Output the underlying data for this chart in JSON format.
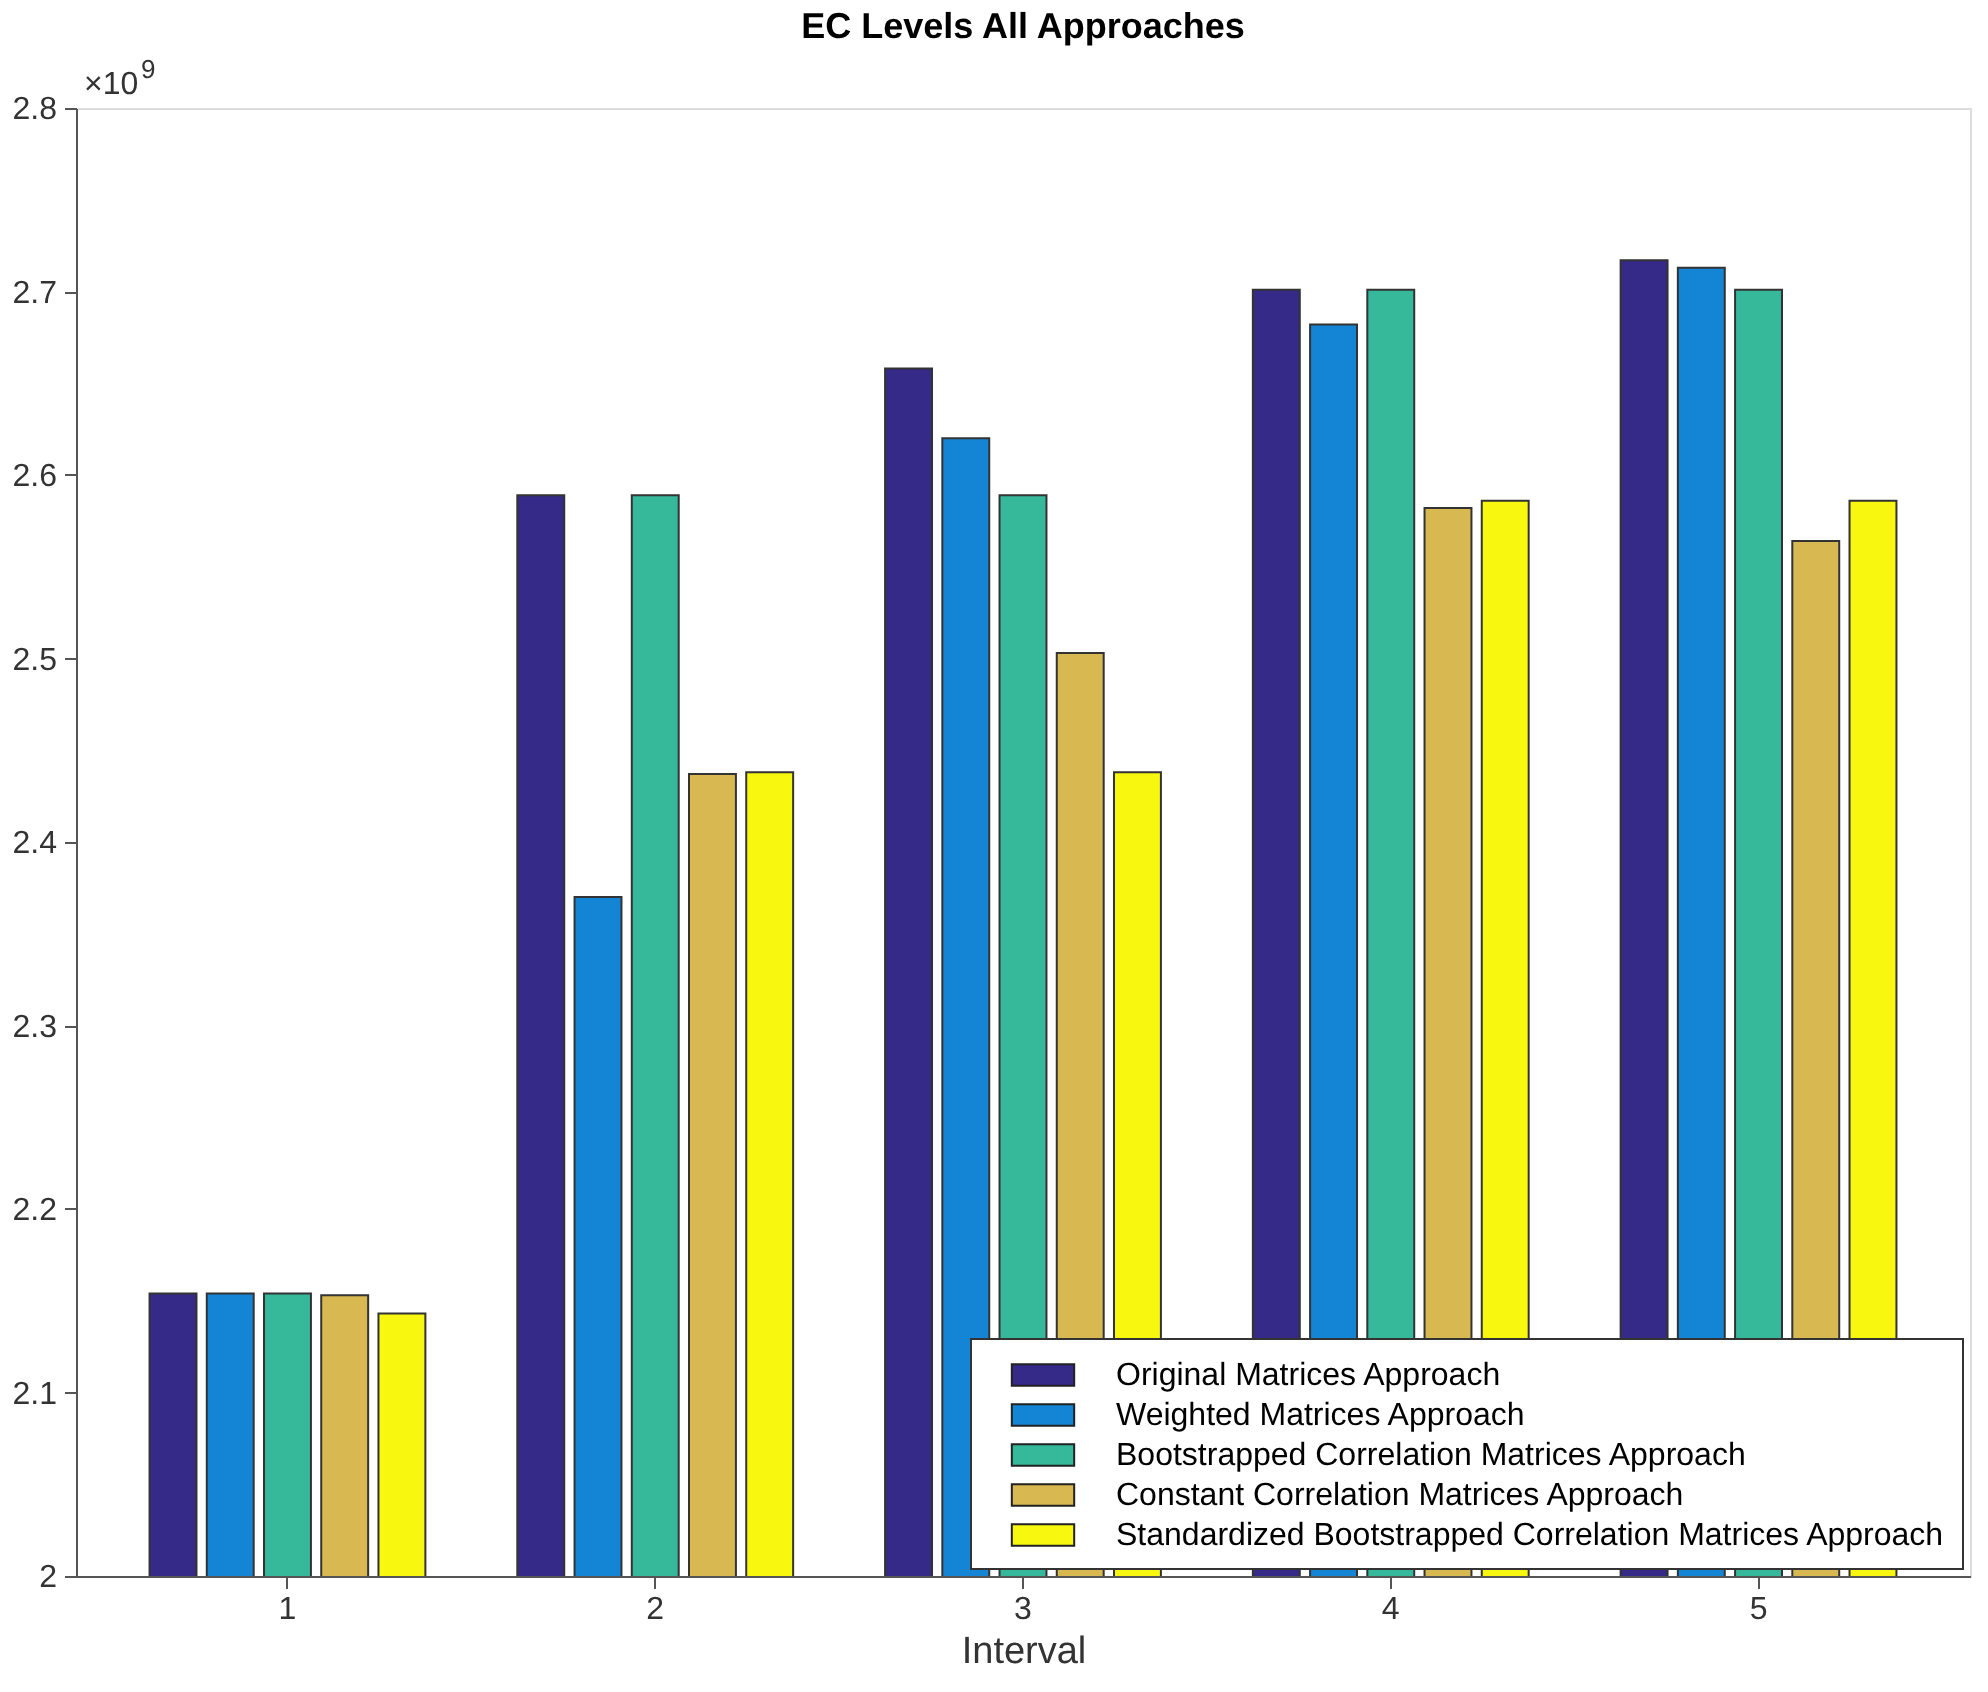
{
  "chart_data": {
    "type": "bar",
    "title": "EC Levels All Approaches",
    "xlabel": "Interval",
    "categories": [
      "1",
      "2",
      "3",
      "4",
      "5"
    ],
    "series": [
      {
        "name": "Original Matrices Approach",
        "color": "#352a87",
        "values": [
          2.154,
          2.589,
          2.658,
          2.701,
          2.717
        ]
      },
      {
        "name": "Weighted Matrices Approach",
        "color": "#1484d5",
        "values": [
          2.154,
          2.37,
          2.62,
          2.682,
          2.713
        ]
      },
      {
        "name": "Bootstrapped Correlation Matrices Approach",
        "color": "#36b99b",
        "values": [
          2.154,
          2.589,
          2.589,
          2.701,
          2.701
        ]
      },
      {
        "name": "Constant Correlation Matrices Approach",
        "color": "#d7b851",
        "values": [
          2.153,
          2.437,
          2.503,
          2.582,
          2.564
        ]
      },
      {
        "name": "Standardized Bootstrapped Correlation Matrices Approach",
        "color": "#f7f70f",
        "values": [
          2.143,
          2.438,
          2.438,
          2.586,
          2.586
        ]
      }
    ],
    "ylim": [
      2,
      2.8
    ],
    "yticks": [
      2,
      2.1,
      2.2,
      2.3,
      2.4,
      2.5,
      2.6,
      2.7,
      2.8
    ],
    "annotations": [
      "×10$^{9}$"
    ],
    "legend": "bottom right",
    "grid": false
  }
}
